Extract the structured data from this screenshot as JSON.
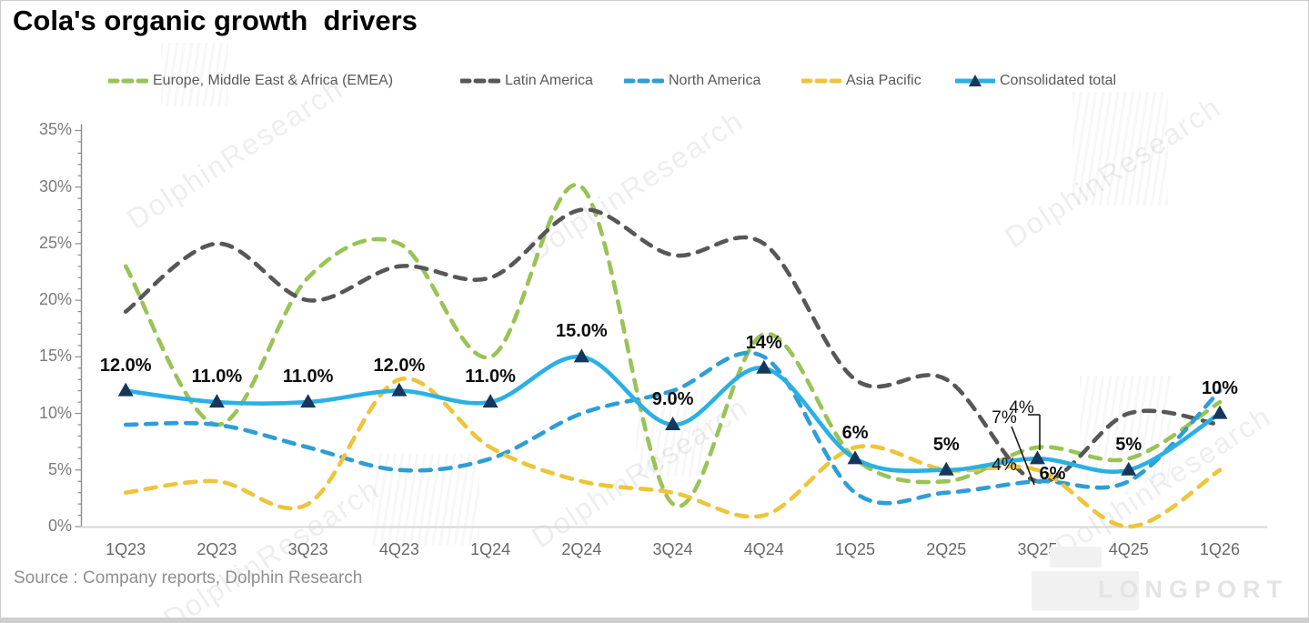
{
  "title": "Cola's organic growth  drivers",
  "source": "Source : Company reports, Dolphin Research",
  "branding": {
    "watermark_text": "DolphinResearch",
    "logo_text": "LONGPORT"
  },
  "chart_data": {
    "type": "line",
    "title": "Cola's organic growth drivers",
    "categories": [
      "1Q23",
      "2Q23",
      "3Q23",
      "4Q23",
      "1Q24",
      "2Q24",
      "3Q24",
      "4Q24",
      "1Q25",
      "2Q25",
      "3Q25",
      "4Q25",
      "1Q26"
    ],
    "ylim": [
      0,
      35
    ],
    "ytick_step": 5,
    "ytick_labels": [
      "0%",
      "5%",
      "10%",
      "15%",
      "20%",
      "25%",
      "30%",
      "35%"
    ],
    "grid": false,
    "legend_position": "top",
    "series": [
      {
        "name": "Europe, Middle East & Africa (EMEA)",
        "color": "#9ac356",
        "style": "dashed",
        "values": [
          23,
          9,
          22,
          25,
          15,
          30,
          2,
          17,
          6,
          4,
          7,
          6,
          11
        ]
      },
      {
        "name": "Latin America",
        "color": "#575757",
        "style": "dashed",
        "values": [
          19,
          25,
          20,
          23,
          22,
          28,
          24,
          25,
          13,
          13,
          4,
          10,
          9
        ]
      },
      {
        "name": "North America",
        "color": "#2d9ed6",
        "style": "dashed",
        "values": [
          9,
          9,
          7,
          5,
          6,
          10,
          12,
          15,
          3,
          3,
          4,
          4,
          12
        ]
      },
      {
        "name": "Asia Pacific",
        "color": "#eec43a",
        "style": "dashed",
        "values": [
          3,
          4,
          2,
          13,
          7,
          4,
          3,
          1,
          7,
          5,
          5,
          0,
          5
        ]
      },
      {
        "name": "Consolidated total",
        "color": "#2bb0e4",
        "style": "solid",
        "marker": "triangle",
        "marker_color": "#16365c",
        "values": [
          12,
          11,
          11,
          12,
          11,
          15,
          9,
          14,
          6,
          5,
          6,
          5,
          10
        ],
        "point_labels": [
          "12.0%",
          "11.0%",
          "11.0%",
          "12.0%",
          "11.0%",
          "15.0%",
          "9.0%",
          "14%",
          "6%",
          "5%",
          "6%",
          "5%",
          "10%"
        ]
      }
    ],
    "annotations": {
      "extra_labels": [
        {
          "text": "7%",
          "x": 1103,
          "y": 460
        },
        {
          "text": "4%",
          "x": 1122,
          "y": 449
        },
        {
          "text": "4%",
          "x": 1103,
          "y": 512
        }
      ],
      "leader_lines": [
        [
          1129,
          455,
          1142,
          455
        ],
        [
          1142,
          455,
          1142,
          494
        ],
        [
          1111,
          468,
          1136,
          532
        ]
      ]
    }
  }
}
